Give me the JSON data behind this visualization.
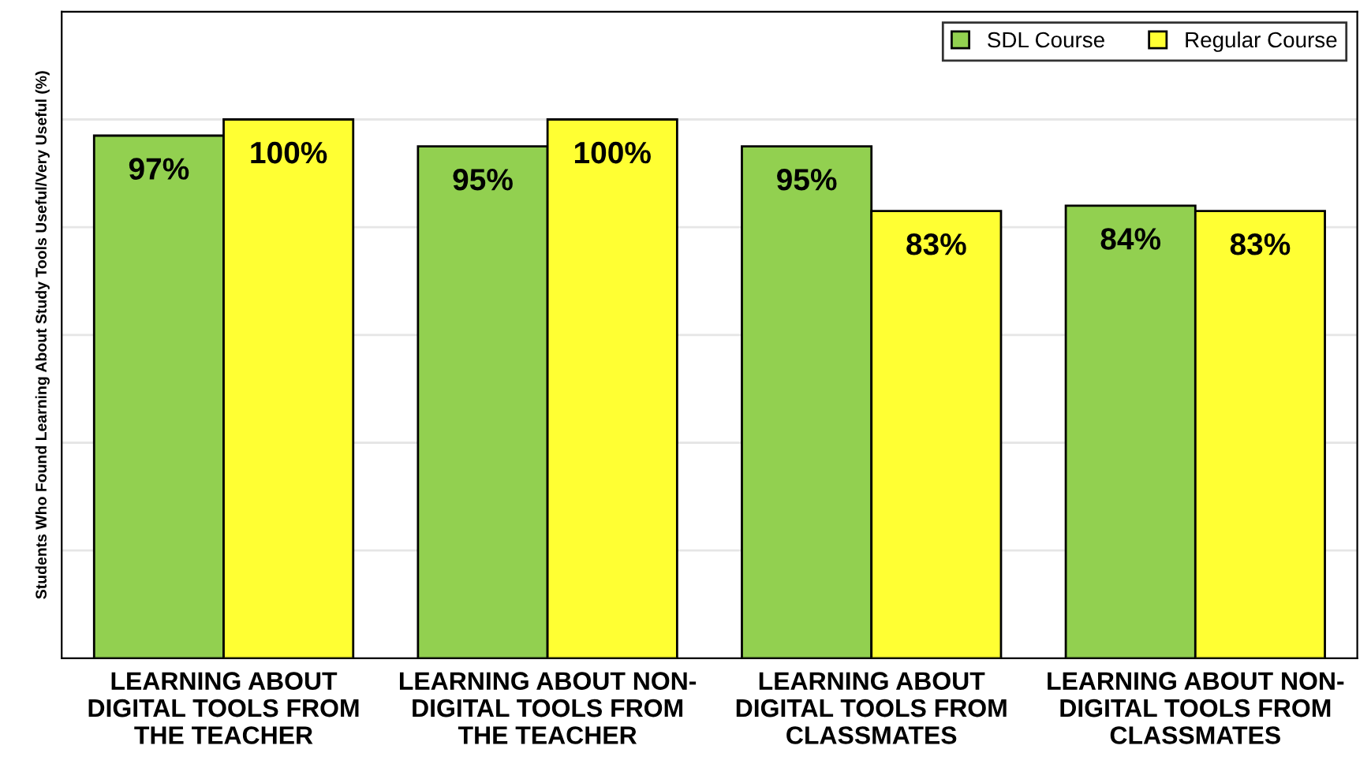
{
  "chart_data": {
    "type": "bar",
    "ylabel": "Students Who Found Learning About Study Tools Useful/Very Useful (%)",
    "categories": [
      "LEARNING ABOUT\nDIGITAL TOOLS FROM\nTHE TEACHER",
      "LEARNING ABOUT NON-\nDIGITAL TOOLS FROM\nTHE TEACHER",
      "LEARNING ABOUT\nDIGITAL TOOLS FROM\nCLASSMATES",
      "LEARNING ABOUT NON-\nDIGITAL TOOLS FROM\nCLASSMATES"
    ],
    "series": [
      {
        "name": "SDL Course",
        "color": "#92d050",
        "values": [
          97,
          95,
          95,
          84
        ],
        "value_labels": [
          "97%",
          "95%",
          "95%",
          "84%"
        ]
      },
      {
        "name": "Regular Course",
        "color": "#ffff33",
        "values": [
          100,
          100,
          83,
          83
        ],
        "value_labels": [
          "100%",
          "100%",
          "83%",
          "83%"
        ]
      }
    ],
    "ylim": [
      0,
      120
    ],
    "yticks": [
      {
        "value": 0,
        "label": null
      },
      {
        "value": 20,
        "label": null
      },
      {
        "value": 40,
        "label": null
      },
      {
        "value": 60,
        "label": null
      },
      {
        "value": 80,
        "label": null
      },
      {
        "value": 100,
        "label": null
      }
    ],
    "grid": "y",
    "legend": "top right"
  }
}
